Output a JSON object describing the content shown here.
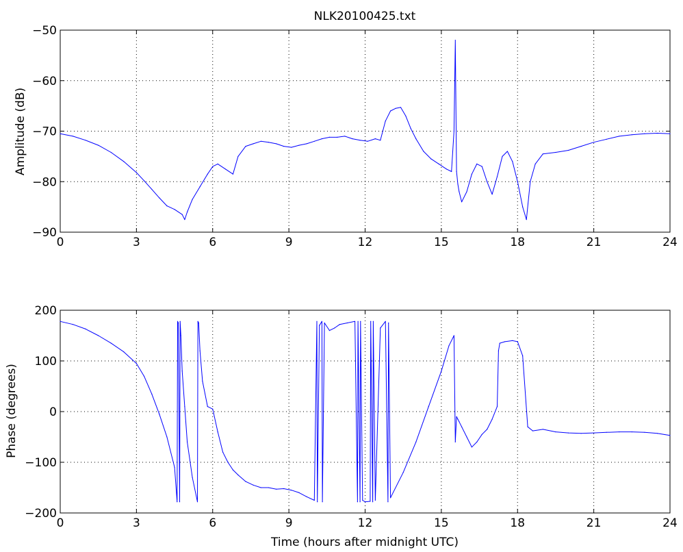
{
  "colors": {
    "series": "#0000ff",
    "background": "#ffffff",
    "axes": "#000000"
  },
  "chart_data": [
    {
      "type": "line",
      "title": "NLK20100425.txt",
      "xlabel": "",
      "ylabel": "Amplitude (dB)",
      "xlim": [
        0,
        24
      ],
      "ylim": [
        -90,
        -50
      ],
      "xticks": [
        0,
        3,
        6,
        9,
        12,
        15,
        18,
        21,
        24
      ],
      "yticks": [
        -90,
        -80,
        -70,
        -60,
        -50
      ],
      "xtick_labels": [
        "0",
        "3",
        "6",
        "9",
        "12",
        "15",
        "18",
        "21",
        "24"
      ],
      "ytick_labels": [
        "−90",
        "−80",
        "−70",
        "−60",
        "−50"
      ],
      "grid": true,
      "series": [
        {
          "x": [
            0,
            0.5,
            1,
            1.5,
            2,
            2.5,
            3,
            3.3,
            3.6,
            3.9,
            4.2,
            4.5,
            4.8,
            4.9,
            5.0,
            5.2,
            5.5,
            5.8,
            6.0,
            6.2,
            6.5,
            6.8,
            7.0,
            7.3,
            7.6,
            7.9,
            8.2,
            8.5,
            8.8,
            9.1,
            9.4,
            9.7,
            10.0,
            10.3,
            10.6,
            10.9,
            11.2,
            11.5,
            11.8,
            12.1,
            12.4,
            12.6,
            12.8,
            13.0,
            13.2,
            13.4,
            13.6,
            13.8,
            14.0,
            14.3,
            14.6,
            14.9,
            15.2,
            15.4,
            15.5,
            15.55,
            15.6,
            15.65,
            15.7,
            15.8,
            16.0,
            16.2,
            16.4,
            16.6,
            16.8,
            17.0,
            17.2,
            17.4,
            17.6,
            17.8,
            18.0,
            18.2,
            18.35,
            18.5,
            18.7,
            19.0,
            19.5,
            20.0,
            20.5,
            21.0,
            21.5,
            22.0,
            22.5,
            23.0,
            23.5,
            24.0
          ],
          "values": [
            -70.5,
            -71,
            -71.8,
            -72.8,
            -74.2,
            -76,
            -78.2,
            -79.8,
            -81.5,
            -83.2,
            -84.8,
            -85.5,
            -86.5,
            -87.5,
            -86,
            -83.5,
            -81,
            -78.5,
            -77,
            -76.5,
            -77.5,
            -78.5,
            -75,
            -73,
            -72.5,
            -72,
            -72.2,
            -72.5,
            -73,
            -73.2,
            -72.8,
            -72.5,
            -72,
            -71.5,
            -71.2,
            -71.2,
            -71,
            -71.5,
            -71.8,
            -72,
            -71.5,
            -71.8,
            -68,
            -66,
            -65.5,
            -65.3,
            -67,
            -69.5,
            -71.5,
            -74,
            -75.5,
            -76.5,
            -77.5,
            -78,
            -70,
            -52,
            -78,
            -80.5,
            -82,
            -84,
            -82,
            -78.5,
            -76.5,
            -77,
            -80,
            -82.5,
            -79,
            -75,
            -74,
            -76,
            -80,
            -85,
            -87.5,
            -80,
            -76.5,
            -74.5,
            -74.2,
            -73.8,
            -73,
            -72.2,
            -71.6,
            -71,
            -70.7,
            -70.5,
            -70.4,
            -70.5
          ]
        }
      ]
    },
    {
      "type": "line",
      "title": "",
      "xlabel": "Time (hours after midnight UTC)",
      "ylabel": "Phase (degrees)",
      "xlim": [
        0,
        24
      ],
      "ylim": [
        -200,
        200
      ],
      "xticks": [
        0,
        3,
        6,
        9,
        12,
        15,
        18,
        21,
        24
      ],
      "yticks": [
        -200,
        -100,
        0,
        100,
        200
      ],
      "xtick_labels": [
        "0",
        "3",
        "6",
        "9",
        "12",
        "15",
        "18",
        "21",
        "24"
      ],
      "ytick_labels": [
        "−200",
        "−100",
        "0",
        "100",
        "200"
      ],
      "grid": true,
      "series": [
        {
          "x": [
            0,
            0.5,
            1,
            1.5,
            2,
            2.5,
            3,
            3.3,
            3.6,
            3.9,
            4.2,
            4.5,
            4.6,
            4.62,
            4.65,
            4.7,
            4.72,
            4.75,
            4.8,
            4.9,
            5.0,
            5.2,
            5.4,
            5.42,
            5.45,
            5.5,
            5.6,
            5.8,
            6.0,
            6.2,
            6.4,
            6.6,
            6.8,
            7.0,
            7.3,
            7.6,
            7.9,
            8.2,
            8.5,
            8.8,
            9.1,
            9.4,
            9.7,
            10.0,
            10.1,
            10.12,
            10.2,
            10.3,
            10.32,
            10.4,
            10.6,
            10.8,
            11.0,
            11.3,
            11.6,
            11.7,
            11.72,
            11.8,
            11.82,
            11.9,
            12.0,
            12.2,
            12.22,
            12.3,
            12.32,
            12.4,
            12.6,
            12.8,
            12.9,
            12.92,
            13.0,
            13.5,
            14.0,
            14.5,
            15.0,
            15.3,
            15.5,
            15.55,
            15.6,
            15.65,
            15.7,
            15.8,
            16.0,
            16.2,
            16.4,
            16.6,
            16.8,
            17.0,
            17.2,
            17.25,
            17.3,
            17.5,
            17.8,
            18.0,
            18.2,
            18.4,
            18.6,
            19.0,
            19.5,
            20.0,
            20.5,
            21.0,
            21.5,
            22.0,
            22.5,
            23.0,
            23.5,
            24.0
          ],
          "values": [
            178,
            172,
            163,
            150,
            135,
            118,
            95,
            70,
            35,
            -5,
            -50,
            -110,
            -178,
            178,
            175,
            -178,
            178,
            150,
            80,
            10,
            -60,
            -130,
            -178,
            178,
            175,
            120,
            60,
            10,
            5,
            -40,
            -80,
            -100,
            -115,
            -125,
            -138,
            -145,
            -150,
            -150,
            -153,
            -152,
            -155,
            -160,
            -168,
            -175,
            178,
            -178,
            170,
            178,
            -178,
            175,
            160,
            165,
            172,
            175,
            178,
            -178,
            178,
            -178,
            178,
            -175,
            -178,
            -177,
            178,
            -178,
            178,
            -175,
            165,
            178,
            -178,
            175,
            -170,
            -120,
            -60,
            10,
            80,
            130,
            150,
            -60,
            -10,
            -15,
            -20,
            -30,
            -50,
            -70,
            -60,
            -45,
            -35,
            -15,
            10,
            120,
            135,
            138,
            140,
            138,
            110,
            -30,
            -38,
            -35,
            -40,
            -42,
            -43,
            -42,
            -41,
            -40,
            -40,
            -41,
            -43,
            -47
          ]
        }
      ]
    }
  ]
}
